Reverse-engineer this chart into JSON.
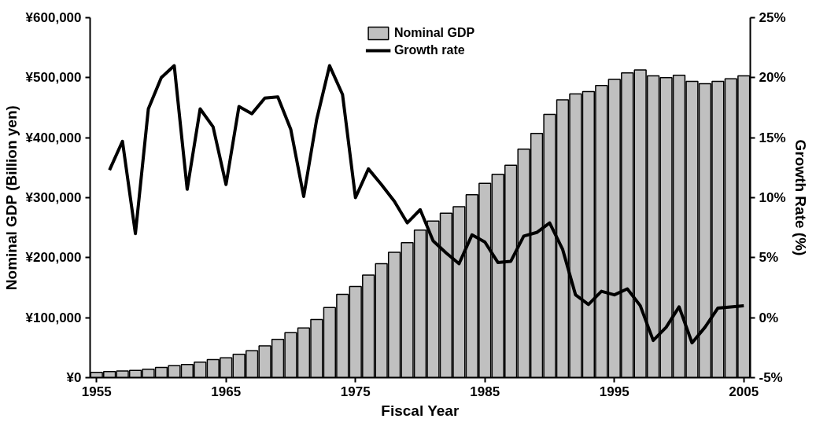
{
  "chart_data": {
    "type": "bar",
    "xlabel": "Fiscal Year",
    "ylabel": "Nominal GDP (Billion yen)",
    "y2label": "Growth Rate (%)",
    "xlim": [
      1954.5,
      2005.5
    ],
    "xticks": [
      1955,
      1965,
      1975,
      1985,
      1995,
      2005
    ],
    "ylim": [
      0,
      600000
    ],
    "yticks": [
      {
        "value": 0,
        "label": "¥0"
      },
      {
        "value": 100000,
        "label": "¥100,000"
      },
      {
        "value": 200000,
        "label": "¥200,000"
      },
      {
        "value": 300000,
        "label": "¥300,000"
      },
      {
        "value": 400000,
        "label": "¥400,000"
      },
      {
        "value": 500000,
        "label": "¥500,000"
      },
      {
        "value": 600000,
        "label": "¥600,000"
      }
    ],
    "y2lim": [
      -5,
      25
    ],
    "y2ticks": [
      {
        "value": -5,
        "label": "-5%"
      },
      {
        "value": 0,
        "label": "0%"
      },
      {
        "value": 5,
        "label": "5%"
      },
      {
        "value": 10,
        "label": "10%"
      },
      {
        "value": 15,
        "label": "15%"
      },
      {
        "value": 20,
        "label": "20%"
      },
      {
        "value": 25,
        "label": "25%"
      }
    ],
    "grid": false,
    "legend": "top",
    "series": [
      {
        "name": "Nominal GDP",
        "color": "#c0c0c0",
        "x": [
          1955,
          1956,
          1957,
          1958,
          1959,
          1960,
          1961,
          1962,
          1963,
          1964,
          1965,
          1966,
          1967,
          1968,
          1969,
          1970,
          1971,
          1972,
          1973,
          1974,
          1975,
          1976,
          1977,
          1978,
          1979,
          1980,
          1981,
          1982,
          1983,
          1984,
          1985,
          1986,
          1987,
          1988,
          1989,
          1990,
          1991,
          1992,
          1993,
          1994,
          1995,
          1996,
          1997,
          1998,
          1999,
          2000,
          2001,
          2002,
          2003,
          2004,
          2005
        ],
        "values": [
          9000,
          10000,
          11000,
          12000,
          14000,
          17000,
          20000,
          22000,
          26000,
          30000,
          33000,
          39000,
          45000,
          53000,
          64000,
          75000,
          83000,
          97000,
          117000,
          139000,
          152000,
          171000,
          190000,
          209000,
          225000,
          246000,
          261000,
          274000,
          285000,
          305000,
          324000,
          339000,
          354000,
          381000,
          407000,
          439000,
          463000,
          473000,
          477000,
          487000,
          497000,
          508000,
          513000,
          503000,
          500000,
          504000,
          494000,
          490000,
          494000,
          498000,
          503000
        ]
      },
      {
        "name": "Growth rate",
        "type": "line",
        "color": "#000000",
        "axis": "y2",
        "x": [
          1956,
          1957,
          1958,
          1959,
          1960,
          1961,
          1962,
          1963,
          1964,
          1965,
          1966,
          1967,
          1968,
          1969,
          1970,
          1971,
          1972,
          1973,
          1974,
          1975,
          1976,
          1977,
          1978,
          1979,
          1980,
          1981,
          1982,
          1983,
          1984,
          1985,
          1986,
          1987,
          1988,
          1989,
          1990,
          1991,
          1992,
          1993,
          1994,
          1995,
          1996,
          1997,
          1998,
          1999,
          2000,
          2001,
          2002,
          2003,
          2004,
          2005
        ],
        "values": [
          12.3,
          14.7,
          7.0,
          17.4,
          20.0,
          21.0,
          10.7,
          17.4,
          15.9,
          11.1,
          17.6,
          17.0,
          18.3,
          18.4,
          15.7,
          10.1,
          16.5,
          21.0,
          18.6,
          10.0,
          12.4,
          11.1,
          9.7,
          7.9,
          9.0,
          6.4,
          5.4,
          4.5,
          6.9,
          6.3,
          4.6,
          4.7,
          6.8,
          7.1,
          7.9,
          5.7,
          1.9,
          1.1,
          2.2,
          1.9,
          2.4,
          1.0,
          -1.9,
          -0.8,
          0.9,
          -2.1,
          -0.8,
          0.8,
          0.9,
          1.0
        ]
      }
    ]
  }
}
